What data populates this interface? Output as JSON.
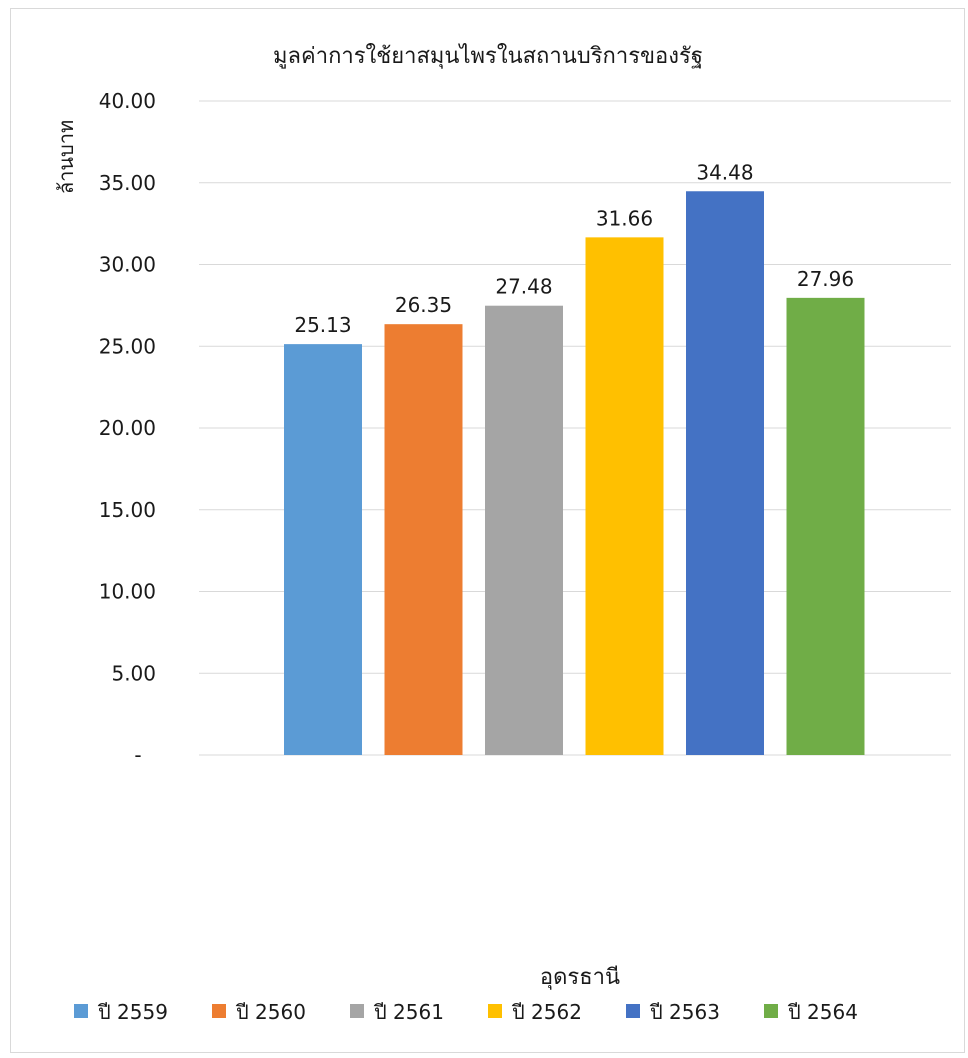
{
  "chart_data": {
    "type": "bar",
    "title": "มูลค่าการใช้ยาสมุนไพรในสถานบริการของรัฐ",
    "ylabel": "ล้านบาท",
    "xlabel": "อุดรธานี",
    "categories": [
      "อุดรธานี"
    ],
    "series": [
      {
        "name": "ปี 2559",
        "values": [
          25.13
        ],
        "color": "#5b9bd5",
        "label": "25.13"
      },
      {
        "name": "ปี 2560",
        "values": [
          26.35
        ],
        "color": "#ed7d31",
        "label": "26.35"
      },
      {
        "name": "ปี 2561",
        "values": [
          27.48
        ],
        "color": "#a5a5a5",
        "label": "27.48"
      },
      {
        "name": "ปี 2562",
        "values": [
          31.66
        ],
        "color": "#ffc000",
        "label": "31.66"
      },
      {
        "name": "ปี 2563",
        "values": [
          34.48
        ],
        "color": "#4472c4",
        "label": "34.48"
      },
      {
        "name": "ปี 2564",
        "values": [
          27.96
        ],
        "color": "#70ad47",
        "label": "27.96"
      }
    ],
    "ylim": [
      0,
      40
    ],
    "yticks": [
      0,
      5,
      10,
      15,
      20,
      25,
      30,
      35,
      40
    ],
    "ytick_labels": [
      "-",
      "5.00",
      "10.00",
      "15.00",
      "20.00",
      "25.00",
      "30.00",
      "35.00",
      "40.00"
    ],
    "grid": true,
    "legend_position": "bottom",
    "gridline_color": "#d9d9d9"
  }
}
